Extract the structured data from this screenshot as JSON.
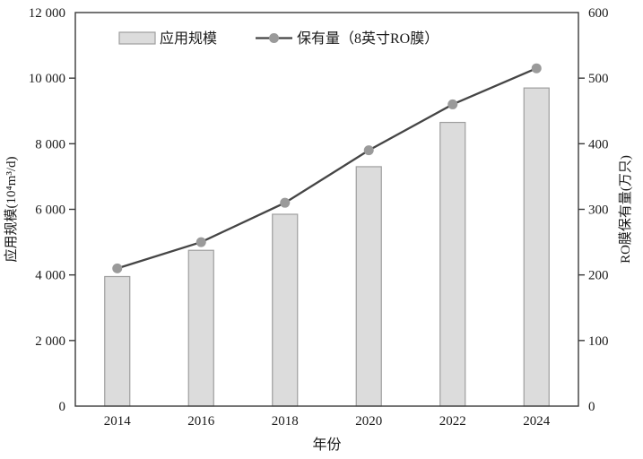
{
  "chart_data": {
    "type": "bar+line",
    "title": "",
    "categories": [
      "2014",
      "2016",
      "2018",
      "2020",
      "2022",
      "2024"
    ],
    "series": [
      {
        "name": "应用规模",
        "type": "bar",
        "axis": "left",
        "values": [
          3950,
          4750,
          5850,
          7300,
          8650,
          9700
        ]
      },
      {
        "name": "保有量（8英寸RO膜）",
        "type": "line",
        "axis": "right",
        "values": [
          210,
          250,
          310,
          390,
          460,
          515
        ]
      }
    ],
    "xlabel": "年份",
    "ylabel_left": "应用规模(10⁴m³/d)",
    "ylabel_right": "RO膜保有量(万只)",
    "ylim_left": [
      0,
      12000
    ],
    "ylim_right": [
      0,
      600
    ],
    "left_tick_values": [
      0,
      2000,
      4000,
      6000,
      8000,
      10000,
      12000
    ],
    "left_tick_labels": [
      "0",
      "2 000",
      "4 000",
      "6 000",
      "8 000",
      "10 000",
      "12 000"
    ],
    "right_tick_values": [
      0,
      100,
      200,
      300,
      400,
      500,
      600
    ],
    "right_tick_labels": [
      "0",
      "100",
      "200",
      "300",
      "400",
      "500",
      "600"
    ],
    "grid": false,
    "legend_position": "inside-top",
    "colors": {
      "bar_fill": "#dcdcdc",
      "bar_border": "#9e9e9e",
      "line": "#454545",
      "marker": "#9a9a9a",
      "axis": "#3a3a3a",
      "text": "#1a1a1a"
    }
  }
}
